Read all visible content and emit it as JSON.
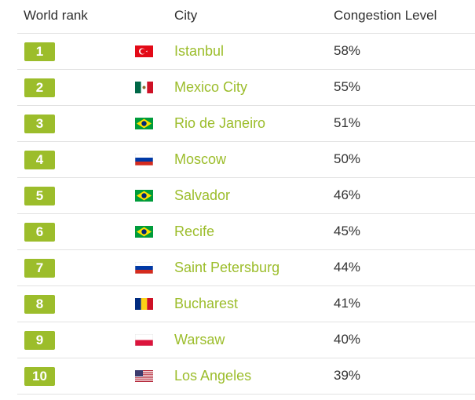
{
  "headers": {
    "rank": "World rank",
    "city": "City",
    "congestion": "Congestion Level"
  },
  "colors": {
    "accent": "#9cbd2b",
    "divider": "#e2e2e2",
    "text": "#333333"
  },
  "rows": [
    {
      "rank": "1",
      "flag": "turkey-flag-icon",
      "city": "Istanbul",
      "congestion": "58%"
    },
    {
      "rank": "2",
      "flag": "mexico-flag-icon",
      "city": "Mexico City",
      "congestion": "55%"
    },
    {
      "rank": "3",
      "flag": "brazil-flag-icon",
      "city": "Rio de Janeiro",
      "congestion": "51%"
    },
    {
      "rank": "4",
      "flag": "russia-flag-icon",
      "city": "Moscow",
      "congestion": "50%"
    },
    {
      "rank": "5",
      "flag": "brazil-flag-icon",
      "city": "Salvador",
      "congestion": "46%"
    },
    {
      "rank": "6",
      "flag": "brazil-flag-icon",
      "city": "Recife",
      "congestion": "45%"
    },
    {
      "rank": "7",
      "flag": "russia-flag-icon",
      "city": "Saint Petersburg",
      "congestion": "44%"
    },
    {
      "rank": "8",
      "flag": "romania-flag-icon",
      "city": "Bucharest",
      "congestion": "41%"
    },
    {
      "rank": "9",
      "flag": "poland-flag-icon",
      "city": "Warsaw",
      "congestion": "40%"
    },
    {
      "rank": "10",
      "flag": "usa-flag-icon",
      "city": "Los Angeles",
      "congestion": "39%"
    }
  ]
}
